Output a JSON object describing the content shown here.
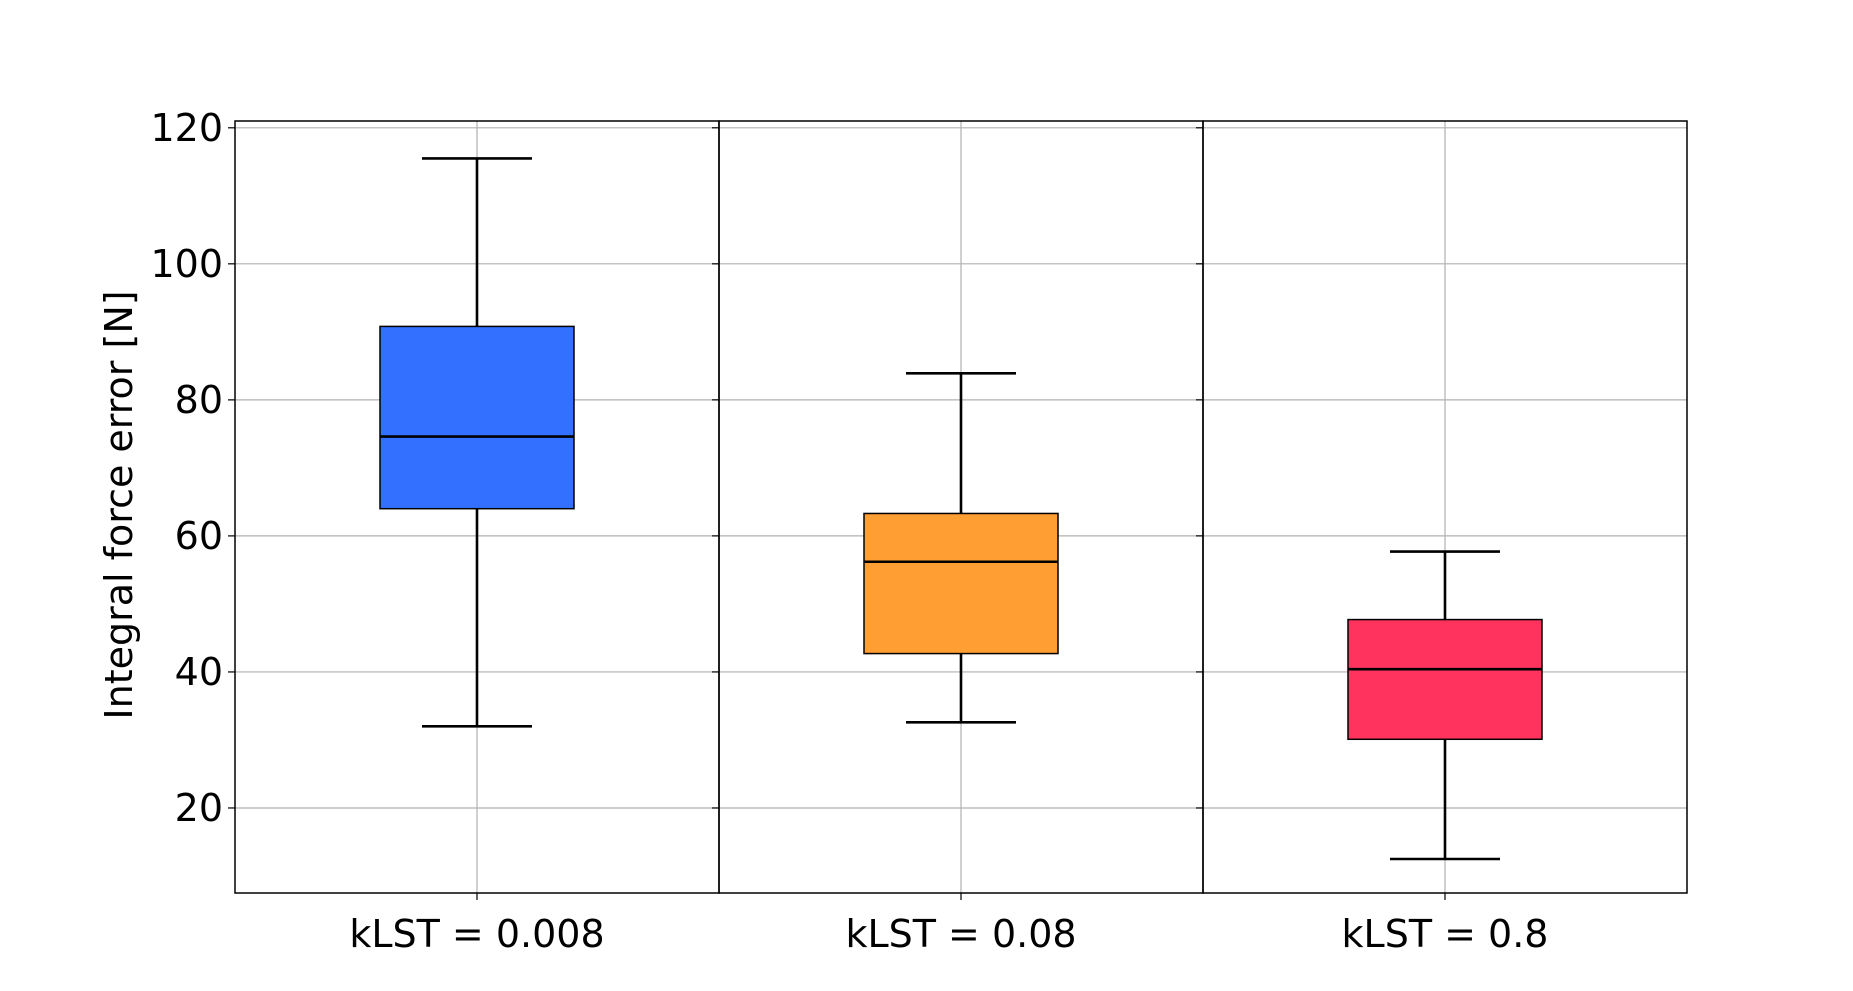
{
  "chart_data": {
    "type": "box",
    "title": "",
    "xlabel": "",
    "ylabel": "Integral force error [N]",
    "ylim": [
      7.5,
      121
    ],
    "yticks": [
      20,
      40,
      60,
      80,
      100,
      120
    ],
    "grid": true,
    "panels": [
      {
        "label": "kLST = 0.008",
        "whisker_low": 32,
        "q1": 64,
        "median": 74.6,
        "q3": 90.8,
        "whisker_high": 115.5,
        "color": "#3370ff"
      },
      {
        "label": "kLST = 0.08",
        "whisker_low": 32.6,
        "q1": 42.7,
        "median": 56.2,
        "q3": 63.3,
        "whisker_high": 83.9,
        "color": "#ff9e33"
      },
      {
        "label": "kLST = 0.8",
        "whisker_low": 12.5,
        "q1": 30.1,
        "median": 40.4,
        "q3": 47.7,
        "whisker_high": 57.7,
        "color": "#ff335e"
      }
    ]
  }
}
